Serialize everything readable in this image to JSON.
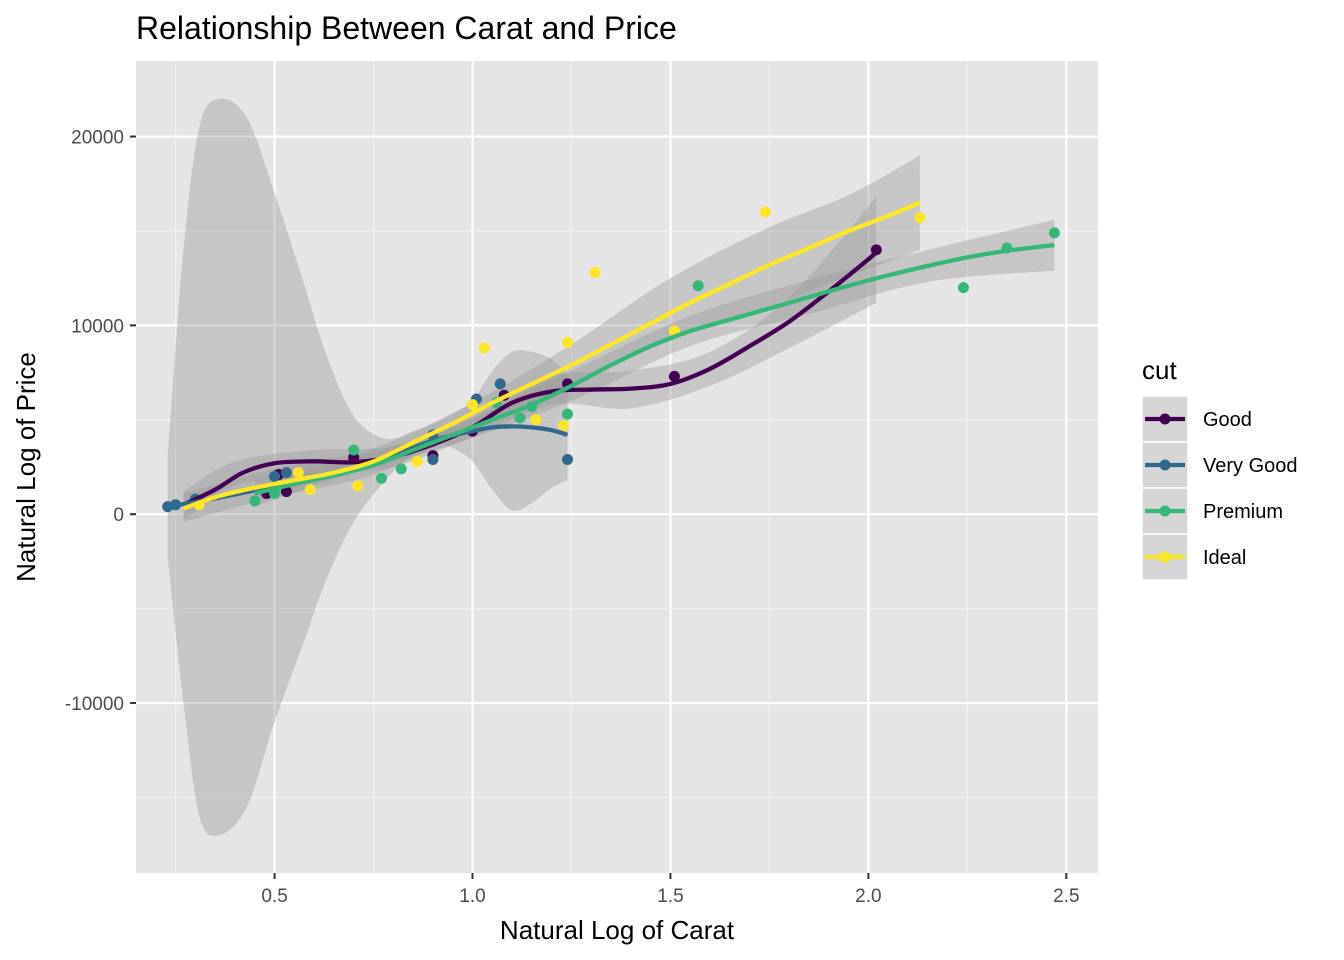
{
  "chart_data": {
    "type": "scatter",
    "title": "Relationship Between Carat and Price",
    "xlabel": "Natural Log of Carat",
    "ylabel": "Natural Log of Price",
    "xlim": [
      0.15,
      2.58
    ],
    "ylim": [
      -19000,
      24000
    ],
    "x_ticks": [
      0.5,
      1.0,
      1.5,
      2.0,
      2.5
    ],
    "x_tick_labels": [
      "0.5",
      "1.0",
      "1.5",
      "2.0",
      "2.5"
    ],
    "y_ticks": [
      -10000,
      0,
      10000,
      20000
    ],
    "y_tick_labels": [
      "-10000",
      "0",
      "10000",
      "20000"
    ],
    "grid": true,
    "background": "#e5e5e5",
    "legend": {
      "title": "cut",
      "position": "right"
    },
    "series": [
      {
        "name": "Good",
        "color": "#440154",
        "points": [
          [
            0.31,
            530
          ],
          [
            0.48,
            1100
          ],
          [
            0.51,
            2100
          ],
          [
            0.53,
            1200
          ],
          [
            0.7,
            3000
          ],
          [
            0.9,
            3100
          ],
          [
            1.0,
            4400
          ],
          [
            1.08,
            6300
          ],
          [
            1.24,
            6900
          ],
          [
            1.51,
            7300
          ],
          [
            2.02,
            14000
          ]
        ],
        "smooth": [
          [
            0.27,
            500
          ],
          [
            0.35,
            1300
          ],
          [
            0.42,
            2200
          ],
          [
            0.5,
            2700
          ],
          [
            0.6,
            2800
          ],
          [
            0.7,
            2750
          ],
          [
            0.8,
            3050
          ],
          [
            0.9,
            3700
          ],
          [
            1.0,
            4600
          ],
          [
            1.1,
            5900
          ],
          [
            1.2,
            6500
          ],
          [
            1.3,
            6600
          ],
          [
            1.4,
            6650
          ],
          [
            1.5,
            6900
          ],
          [
            1.6,
            7700
          ],
          [
            1.7,
            8900
          ],
          [
            1.8,
            10200
          ],
          [
            1.9,
            11800
          ],
          [
            2.0,
            13500
          ],
          [
            2.02,
            13900
          ]
        ],
        "band_upper": [
          [
            0.27,
            1200
          ],
          [
            0.4,
            2800
          ],
          [
            0.6,
            3400
          ],
          [
            0.8,
            3600
          ],
          [
            1.0,
            5000
          ],
          [
            1.2,
            7300
          ],
          [
            1.4,
            7600
          ],
          [
            1.6,
            8600
          ],
          [
            1.8,
            11500
          ],
          [
            2.02,
            16800
          ]
        ],
        "band_lower": [
          [
            0.27,
            -300
          ],
          [
            0.4,
            1500
          ],
          [
            0.6,
            2100
          ],
          [
            0.8,
            2500
          ],
          [
            1.0,
            4100
          ],
          [
            1.2,
            5800
          ],
          [
            1.4,
            5600
          ],
          [
            1.6,
            6800
          ],
          [
            1.8,
            8800
          ],
          [
            2.02,
            11200
          ]
        ]
      },
      {
        "name": "Very Good",
        "color": "#31688e",
        "points": [
          [
            0.23,
            400
          ],
          [
            0.25,
            500
          ],
          [
            0.3,
            800
          ],
          [
            0.5,
            2000
          ],
          [
            0.53,
            2200
          ],
          [
            0.9,
            2900
          ],
          [
            0.9,
            4200
          ],
          [
            1.01,
            6100
          ],
          [
            1.07,
            6900
          ],
          [
            1.24,
            2900
          ]
        ],
        "smooth": [
          [
            0.23,
            400
          ],
          [
            0.3,
            650
          ],
          [
            0.4,
            1050
          ],
          [
            0.5,
            1500
          ],
          [
            0.6,
            1950
          ],
          [
            0.7,
            2400
          ],
          [
            0.8,
            3100
          ],
          [
            0.9,
            3900
          ],
          [
            1.0,
            4400
          ],
          [
            1.05,
            4600
          ],
          [
            1.1,
            4650
          ],
          [
            1.15,
            4600
          ],
          [
            1.2,
            4450
          ],
          [
            1.24,
            4200
          ]
        ],
        "band_upper": [
          [
            0.23,
            3100
          ],
          [
            0.27,
            14000
          ],
          [
            0.31,
            20500
          ],
          [
            0.36,
            22000
          ],
          [
            0.43,
            21000
          ],
          [
            0.5,
            17000
          ],
          [
            0.57,
            12500
          ],
          [
            0.63,
            8500
          ],
          [
            0.7,
            5200
          ],
          [
            0.78,
            4000
          ],
          [
            0.85,
            4400
          ],
          [
            0.9,
            4800
          ],
          [
            0.95,
            5300
          ],
          [
            1.0,
            6000
          ],
          [
            1.05,
            7600
          ],
          [
            1.1,
            8600
          ],
          [
            1.15,
            8600
          ],
          [
            1.2,
            8200
          ],
          [
            1.24,
            7400
          ]
        ],
        "band_lower": [
          [
            0.23,
            -2300
          ],
          [
            0.27,
            -10000
          ],
          [
            0.31,
            -16000
          ],
          [
            0.36,
            -17000
          ],
          [
            0.43,
            -15500
          ],
          [
            0.5,
            -11000
          ],
          [
            0.57,
            -7000
          ],
          [
            0.63,
            -3500
          ],
          [
            0.7,
            -400
          ],
          [
            0.78,
            1800
          ],
          [
            0.85,
            3200
          ],
          [
            0.9,
            3800
          ],
          [
            0.95,
            3500
          ],
          [
            1.0,
            2800
          ],
          [
            1.05,
            1300
          ],
          [
            1.1,
            200
          ],
          [
            1.15,
            600
          ],
          [
            1.2,
            1400
          ],
          [
            1.24,
            1800
          ]
        ]
      },
      {
        "name": "Premium",
        "color": "#35b779",
        "points": [
          [
            0.45,
            700
          ],
          [
            0.5,
            1100
          ],
          [
            0.7,
            3400
          ],
          [
            0.77,
            1900
          ],
          [
            0.82,
            2400
          ],
          [
            1.06,
            5900
          ],
          [
            1.12,
            5100
          ],
          [
            1.15,
            5700
          ],
          [
            1.24,
            5300
          ],
          [
            1.57,
            12100
          ],
          [
            2.24,
            12000
          ],
          [
            2.35,
            14100
          ],
          [
            2.47,
            14900
          ]
        ],
        "smooth": [
          [
            0.45,
            1100
          ],
          [
            0.55,
            1600
          ],
          [
            0.65,
            2050
          ],
          [
            0.75,
            2600
          ],
          [
            0.85,
            3400
          ],
          [
            0.95,
            4200
          ],
          [
            1.05,
            5000
          ],
          [
            1.15,
            5800
          ],
          [
            1.25,
            6800
          ],
          [
            1.35,
            7900
          ],
          [
            1.45,
            8900
          ],
          [
            1.55,
            9700
          ],
          [
            1.65,
            10300
          ],
          [
            1.75,
            10900
          ],
          [
            1.85,
            11500
          ],
          [
            1.95,
            12100
          ],
          [
            2.05,
            12650
          ],
          [
            2.15,
            13150
          ],
          [
            2.25,
            13600
          ],
          [
            2.35,
            13950
          ],
          [
            2.47,
            14250
          ]
        ],
        "band_upper": [
          [
            0.45,
            1800
          ],
          [
            0.7,
            3000
          ],
          [
            0.95,
            4700
          ],
          [
            1.25,
            7600
          ],
          [
            1.55,
            10500
          ],
          [
            1.85,
            12400
          ],
          [
            2.15,
            14000
          ],
          [
            2.47,
            15600
          ]
        ],
        "band_lower": [
          [
            0.45,
            400
          ],
          [
            0.7,
            2200
          ],
          [
            0.95,
            3700
          ],
          [
            1.25,
            6000
          ],
          [
            1.55,
            8900
          ],
          [
            1.85,
            10600
          ],
          [
            2.15,
            12300
          ],
          [
            2.47,
            12900
          ]
        ]
      },
      {
        "name": "Ideal",
        "color": "#fde725",
        "points": [
          [
            0.31,
            500
          ],
          [
            0.56,
            2200
          ],
          [
            0.59,
            1300
          ],
          [
            0.71,
            1500
          ],
          [
            0.86,
            2800
          ],
          [
            1.0,
            5800
          ],
          [
            1.03,
            8800
          ],
          [
            1.16,
            5000
          ],
          [
            1.23,
            4700
          ],
          [
            1.24,
            9100
          ],
          [
            1.31,
            12800
          ],
          [
            1.51,
            9700
          ],
          [
            1.74,
            16000
          ],
          [
            2.13,
            15700
          ]
        ],
        "smooth": [
          [
            0.27,
            300
          ],
          [
            0.35,
            900
          ],
          [
            0.45,
            1400
          ],
          [
            0.55,
            1800
          ],
          [
            0.65,
            2200
          ],
          [
            0.75,
            2800
          ],
          [
            0.85,
            3800
          ],
          [
            0.95,
            4800
          ],
          [
            1.05,
            5900
          ],
          [
            1.15,
            6900
          ],
          [
            1.25,
            7900
          ],
          [
            1.35,
            9000
          ],
          [
            1.45,
            10100
          ],
          [
            1.55,
            11200
          ],
          [
            1.65,
            12200
          ],
          [
            1.75,
            13200
          ],
          [
            1.85,
            14100
          ],
          [
            1.95,
            15000
          ],
          [
            2.05,
            15800
          ],
          [
            2.13,
            16500
          ]
        ],
        "band_upper": [
          [
            0.27,
            1100
          ],
          [
            0.5,
            2400
          ],
          [
            0.75,
            3500
          ],
          [
            1.0,
            5900
          ],
          [
            1.25,
            9000
          ],
          [
            1.5,
            12500
          ],
          [
            1.75,
            15200
          ],
          [
            1.95,
            16900
          ],
          [
            2.13,
            19000
          ]
        ],
        "band_lower": [
          [
            0.27,
            -400
          ],
          [
            0.5,
            900
          ],
          [
            0.75,
            2100
          ],
          [
            1.0,
            4500
          ],
          [
            1.25,
            6800
          ],
          [
            1.5,
            9200
          ],
          [
            1.75,
            11000
          ],
          [
            1.95,
            12600
          ],
          [
            2.13,
            14000
          ]
        ]
      }
    ]
  }
}
